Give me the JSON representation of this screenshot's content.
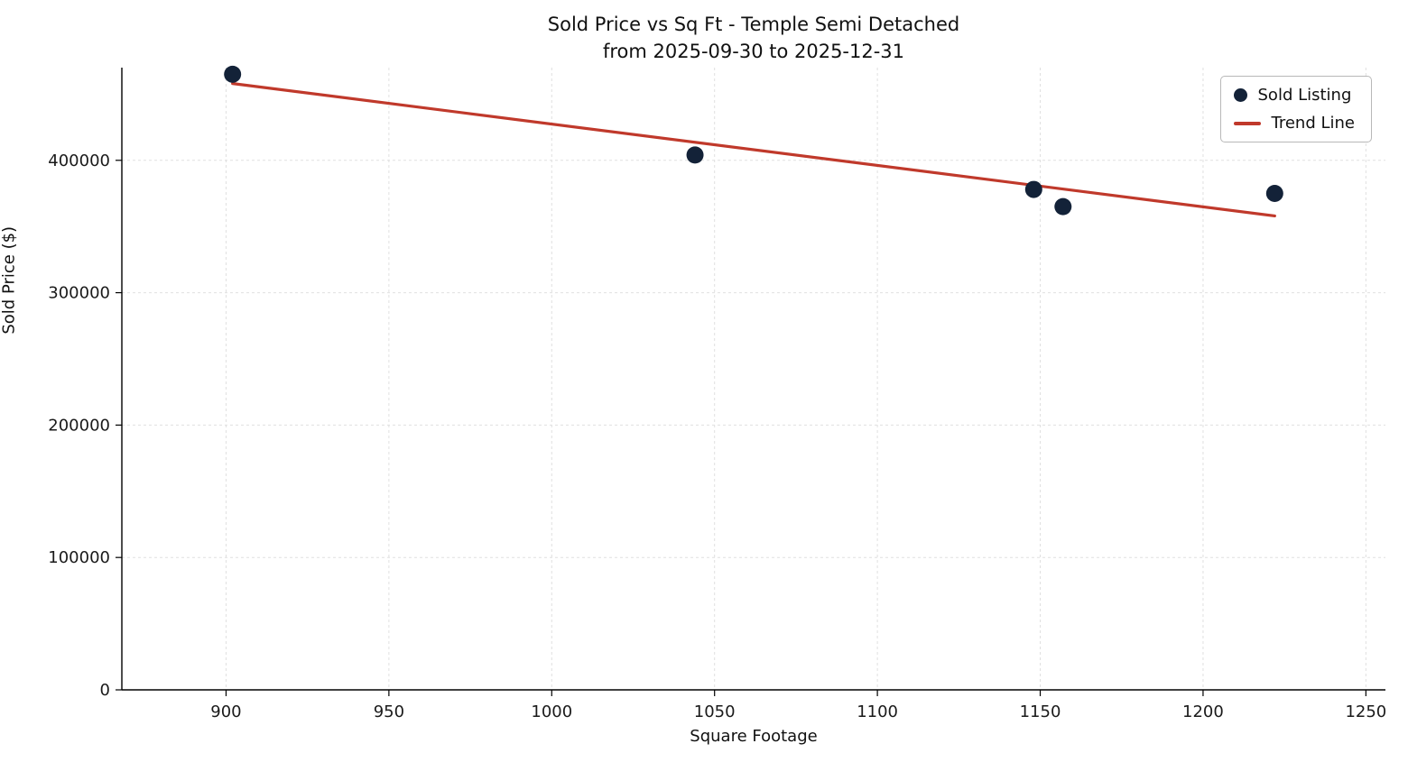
{
  "chart_data": {
    "type": "scatter",
    "title": "Sold Price vs Sq Ft - Temple Semi Detached",
    "subtitle": "from 2025-09-30 to 2025-12-31",
    "xlabel": "Square Footage",
    "ylabel": "Sold Price ($)",
    "xlim": [
      868,
      1256
    ],
    "ylim": [
      0,
      470000
    ],
    "x_ticks": [
      900,
      950,
      1000,
      1050,
      1100,
      1150,
      1200,
      1250
    ],
    "y_ticks": [
      0,
      100000,
      200000,
      300000,
      400000
    ],
    "grid": true,
    "legend_position": "upper right",
    "points": [
      {
        "sqft": 902,
        "price": 465000
      },
      {
        "sqft": 1044,
        "price": 404000
      },
      {
        "sqft": 1148,
        "price": 378000
      },
      {
        "sqft": 1157,
        "price": 365000
      },
      {
        "sqft": 1222,
        "price": 375000
      }
    ],
    "trend_line": {
      "x": [
        902,
        1222
      ],
      "y": [
        458000,
        358000
      ]
    },
    "legend": [
      {
        "label": "Sold Listing",
        "marker": "dot"
      },
      {
        "label": "Trend Line",
        "marker": "line"
      }
    ],
    "colors": {
      "point": "#132238",
      "trend": "#c0392b",
      "grid": "#e0e0e0",
      "spine": "#000000"
    }
  }
}
